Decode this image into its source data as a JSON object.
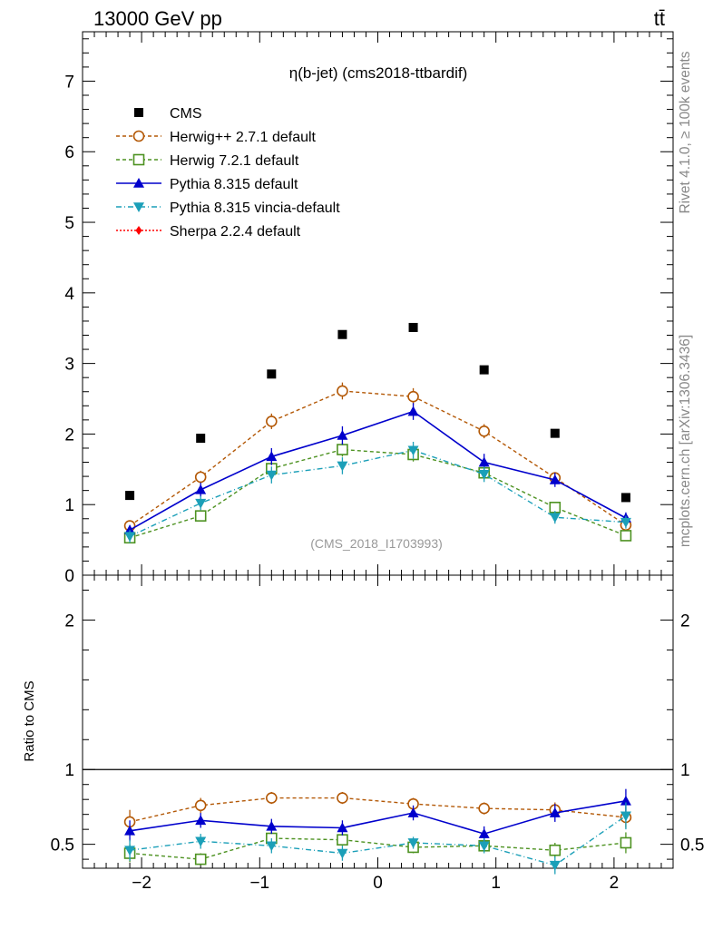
{
  "header": {
    "energy_label": "13000 GeV pp",
    "process_label": "tt̄"
  },
  "side_labels": {
    "rivet": "Rivet 4.1.0, ≥ 100k events",
    "mcplots": "mcplots.cern.ch [arXiv:1306.3436]"
  },
  "chart_data": {
    "type": "scatter",
    "title": "η(b-jet) (cms2018-ttbardif)",
    "watermark": "(CMS_2018_I1703993)",
    "xlabel": "",
    "ylabel_main": "",
    "ylabel_ratio": "Ratio to CMS",
    "xlim": [
      -2.5,
      2.5
    ],
    "ylim_main": [
      0,
      7.7
    ],
    "ylim_ratio": [
      0.34,
      2.3
    ],
    "x_ticks": [
      -2,
      -1,
      0,
      1,
      2
    ],
    "x_tick_labels": [
      "−2",
      "−1",
      "0",
      "1",
      "2"
    ],
    "y_ticks_main": [
      0,
      1,
      2,
      3,
      4,
      5,
      6,
      7
    ],
    "y_tick_labels_main": [
      "0",
      "1",
      "2",
      "3",
      "4",
      "5",
      "6",
      "7"
    ],
    "y_ticks_ratio": [
      0.5,
      1,
      2
    ],
    "y_tick_labels_ratio": [
      "0.5",
      "1",
      "2"
    ],
    "x": [
      -2.1,
      -1.5,
      -0.9,
      -0.3,
      0.3,
      0.9,
      1.5,
      2.1
    ],
    "data": {
      "name": "CMS",
      "color": "#000000",
      "values": [
        1.13,
        1.94,
        2.85,
        3.41,
        3.51,
        2.91,
        2.01,
        1.1
      ]
    },
    "series": [
      {
        "name": "Herwig++ 2.7.1 default",
        "color": "#b35806",
        "marker": "open-circle",
        "dash": "4,3",
        "values": [
          0.7,
          1.39,
          2.18,
          2.61,
          2.53,
          2.04,
          1.38,
          0.71
        ],
        "errors": [
          0.05,
          0.09,
          0.11,
          0.12,
          0.12,
          0.1,
          0.08,
          0.05
        ],
        "ratio": [
          0.65,
          0.76,
          0.81,
          0.81,
          0.77,
          0.74,
          0.73,
          0.68
        ],
        "ratio_errors": [
          0.08,
          0.05,
          0.04,
          0.04,
          0.04,
          0.04,
          0.05,
          0.07
        ]
      },
      {
        "name": "Herwig 7.2.1 default",
        "color": "#4d9221",
        "marker": "open-square",
        "dash": "4,3",
        "values": [
          0.53,
          0.84,
          1.51,
          1.78,
          1.71,
          1.45,
          0.96,
          0.56
        ],
        "errors": [
          0.06,
          0.07,
          0.09,
          0.1,
          0.1,
          0.09,
          0.07,
          0.06
        ],
        "ratio": [
          0.44,
          0.4,
          0.54,
          0.53,
          0.48,
          0.49,
          0.46,
          0.51
        ],
        "ratio_errors": [
          0.06,
          0.04,
          0.04,
          0.04,
          0.04,
          0.04,
          0.05,
          0.07
        ]
      },
      {
        "name": "Pythia 8.315 default",
        "color": "#0000cc",
        "marker": "filled-triangle-up",
        "dash": "",
        "values": [
          0.64,
          1.21,
          1.68,
          1.98,
          2.32,
          1.6,
          1.35,
          0.81
        ],
        "errors": [
          0.07,
          0.1,
          0.12,
          0.13,
          0.12,
          0.12,
          0.1,
          0.08
        ],
        "ratio": [
          0.59,
          0.66,
          0.62,
          0.61,
          0.71,
          0.57,
          0.71,
          0.79
        ],
        "ratio_errors": [
          0.07,
          0.05,
          0.05,
          0.05,
          0.05,
          0.05,
          0.06,
          0.08
        ]
      },
      {
        "name": "Pythia 8.315 vincia-default",
        "color": "#1b9fb8",
        "marker": "filled-triangle-down",
        "dash": "6,3,1,3",
        "values": [
          0.55,
          1.02,
          1.42,
          1.55,
          1.77,
          1.43,
          0.82,
          0.75
        ],
        "errors": [
          0.09,
          0.1,
          0.12,
          0.12,
          0.12,
          0.11,
          0.09,
          0.09
        ],
        "ratio": [
          0.46,
          0.52,
          0.49,
          0.44,
          0.51,
          0.49,
          0.36,
          0.69
        ],
        "ratio_errors": [
          0.07,
          0.05,
          0.05,
          0.05,
          0.04,
          0.05,
          0.06,
          0.09
        ]
      },
      {
        "name": "Sherpa 2.2.4 default",
        "color": "#ff0000",
        "marker": "filled-diamond",
        "dash": "2,2",
        "values": [],
        "errors": [],
        "ratio": [],
        "ratio_errors": []
      }
    ]
  }
}
